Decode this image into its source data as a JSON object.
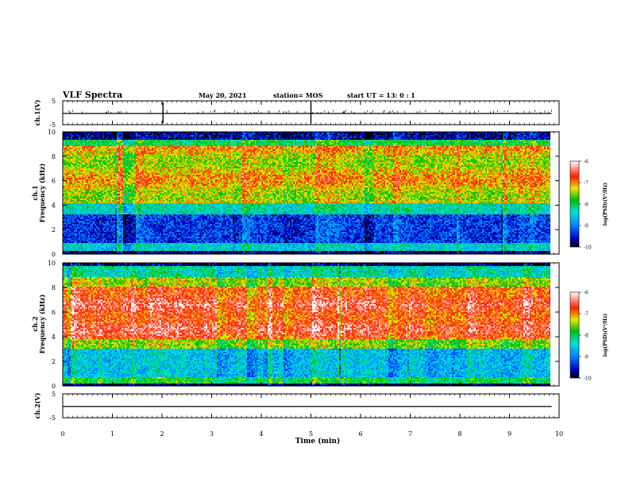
{
  "header": {
    "title": "VLF Spectra",
    "date": "May 20, 2021",
    "station": "station= MOS",
    "start": "start  UT =   13: 0   : 1"
  },
  "colorbar": {
    "label": "log(PSD)(V²/Hz)",
    "ticks": [
      "-6",
      "-7",
      "-8",
      "-9",
      "-10"
    ]
  },
  "chart_data": [
    {
      "type": "line",
      "panel": "ch1-waveform",
      "ylabel": "ch.1(V)",
      "ylim": [
        -5,
        5
      ],
      "yticks": [
        "5",
        "-5"
      ],
      "series": [
        {
          "values": [
            -0.3,
            -0.3
          ]
        }
      ],
      "x": [
        0,
        9.85
      ]
    },
    {
      "type": "heatmap",
      "panel": "ch1-spectrogram",
      "ylabel": "ch.1\nFrequency (kHz)",
      "ylim": [
        0,
        10
      ],
      "yticks": [
        "0",
        "2",
        "4",
        "6",
        "8",
        "10"
      ],
      "xlim": [
        0,
        10
      ],
      "zlim": [
        -10,
        -6
      ]
    },
    {
      "type": "heatmap",
      "panel": "ch2-spectrogram",
      "ylabel": "ch.2\nFrequency (kHz)",
      "ylim": [
        0,
        10
      ],
      "yticks": [
        "0",
        "2",
        "4",
        "6",
        "8",
        "10"
      ],
      "xlim": [
        0,
        10
      ],
      "zlim": [
        -10,
        -6
      ]
    },
    {
      "type": "line",
      "panel": "ch2-waveform",
      "ylabel": "ch.2(V)",
      "ylim": [
        -5,
        5
      ],
      "yticks": [
        "5",
        "-5"
      ],
      "series": [
        {
          "values": [
            -0.3,
            -0.3
          ]
        }
      ],
      "x": [
        0,
        9.85
      ]
    }
  ],
  "xaxis": {
    "label": "Time  (min)",
    "ticks": [
      "0",
      "1",
      "2",
      "3",
      "4",
      "5",
      "6",
      "7",
      "8",
      "9",
      "10"
    ],
    "xlim": [
      0,
      10
    ]
  }
}
